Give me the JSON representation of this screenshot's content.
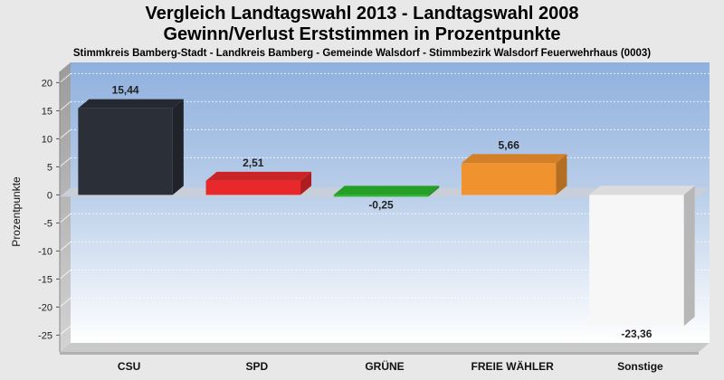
{
  "chart_data": {
    "type": "bar",
    "title": "Vergleich Landtagswahl 2013 - Landtagswahl 2008",
    "subtitle": "Gewinn/Verlust Erststimmen in Prozentpunkte",
    "caption": "Stimmkreis Bamberg-Stadt - Landkreis Bamberg - Gemeinde Walsdorf - Stimmbezirk Walsdorf Feuerwehrhaus (0003)",
    "ylabel": "Prozentpunkte",
    "xlabel": "",
    "ylim": [
      -28,
      22
    ],
    "yticks": [
      20,
      15,
      10,
      5,
      0,
      -5,
      -10,
      -15,
      -20,
      -25
    ],
    "grid": true,
    "categories": [
      "CSU",
      "SPD",
      "GRÜNE",
      "FREIE WÄHLER",
      "Sonstige"
    ],
    "values": [
      15.44,
      2.51,
      -0.25,
      5.66,
      -23.36
    ],
    "labels": [
      "15,44",
      "2,51",
      "-0,25",
      "5,66",
      "-23,36"
    ],
    "colors": [
      "#2b2f38",
      "#e8282b",
      "#2ab52a",
      "#f0922e",
      "#f7f7f7"
    ]
  }
}
